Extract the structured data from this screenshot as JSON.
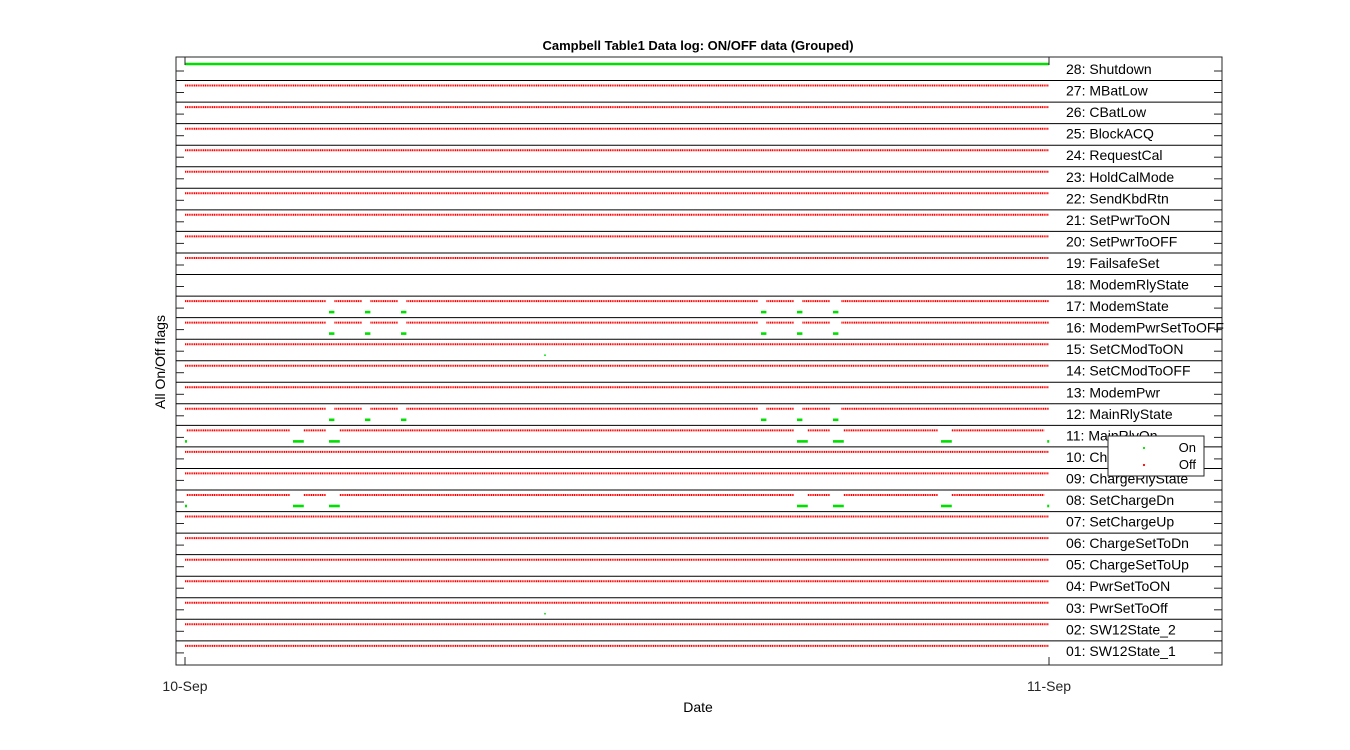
{
  "chart_data": {
    "type": "scatter",
    "title": "Campbell Table1 Data log: ON/OFF data (Grouped)",
    "xlabel": "Date",
    "ylabel": "All On/Off flags",
    "x_ticks": [
      "10-Sep",
      "11-Sep"
    ],
    "xlim": [
      "10-Sep 00:00",
      "11-Sep 04:00"
    ],
    "grid": false,
    "legend": {
      "position": "inside-right",
      "entries": [
        {
          "name": "On",
          "color": "#00e000"
        },
        {
          "name": "Off",
          "color": "#ff0000"
        }
      ]
    },
    "flags": [
      {
        "id": 28,
        "label": "28: Shutdown",
        "state": "on"
      },
      {
        "id": 27,
        "label": "27: MBatLow",
        "state": "off"
      },
      {
        "id": 26,
        "label": "26: CBatLow",
        "state": "off"
      },
      {
        "id": 25,
        "label": "25: BlockACQ",
        "state": "off"
      },
      {
        "id": 24,
        "label": "24: RequestCal",
        "state": "off"
      },
      {
        "id": 23,
        "label": "23: HoldCalMode",
        "state": "off"
      },
      {
        "id": 22,
        "label": "22: SendKbdRtn",
        "state": "off"
      },
      {
        "id": 21,
        "label": "21: SetPwrToON",
        "state": "off"
      },
      {
        "id": 20,
        "label": "20: SetPwrToOFF",
        "state": "off"
      },
      {
        "id": 19,
        "label": "19: FailsafeSet",
        "state": "off"
      },
      {
        "id": 18,
        "label": "18: ModemRlyState",
        "state": "none"
      },
      {
        "id": 17,
        "label": "17: ModemState",
        "state": "off",
        "on_intervals": [
          [
            4.0,
            4.15
          ],
          [
            5.0,
            5.15
          ],
          [
            6.0,
            6.15
          ],
          [
            16.0,
            16.15
          ],
          [
            17.0,
            17.15
          ],
          [
            18.0,
            18.15
          ]
        ]
      },
      {
        "id": 16,
        "label": "16: ModemPwrSetToOFF",
        "state": "off",
        "on_intervals": [
          [
            4.0,
            4.15
          ],
          [
            5.0,
            5.15
          ],
          [
            6.0,
            6.15
          ],
          [
            16.0,
            16.15
          ],
          [
            17.0,
            17.15
          ],
          [
            18.0,
            18.15
          ]
        ]
      },
      {
        "id": 15,
        "label": "15: SetCModToON",
        "state": "off",
        "on_points": [
          10.0
        ]
      },
      {
        "id": 14,
        "label": "14: SetCModToOFF",
        "state": "off"
      },
      {
        "id": 13,
        "label": "13: ModemPwr",
        "state": "off"
      },
      {
        "id": 12,
        "label": "12: MainRlyState",
        "state": "off",
        "on_intervals": [
          [
            4.0,
            4.15
          ],
          [
            5.0,
            5.15
          ],
          [
            6.0,
            6.15
          ],
          [
            16.0,
            16.15
          ],
          [
            17.0,
            17.15
          ],
          [
            18.0,
            18.15
          ]
        ]
      },
      {
        "id": 11,
        "label": "11: MainRlyOn",
        "state": "off",
        "on_intervals": [
          [
            0.0,
            0.05
          ],
          [
            3.0,
            3.3
          ],
          [
            4.0,
            4.3
          ],
          [
            17.0,
            17.3
          ],
          [
            18.0,
            18.3
          ],
          [
            21.0,
            21.3
          ],
          [
            23.95,
            24.0
          ]
        ]
      },
      {
        "id": 10,
        "label": "10: ChargeRlyOn",
        "state": "off"
      },
      {
        "id": 9,
        "label": "09: ChargeRlyState",
        "state": "off"
      },
      {
        "id": 8,
        "label": "08: SetChargeDn",
        "state": "off",
        "on_intervals": [
          [
            0.0,
            0.05
          ],
          [
            3.0,
            3.3
          ],
          [
            4.0,
            4.3
          ],
          [
            17.0,
            17.3
          ],
          [
            18.0,
            18.3
          ],
          [
            21.0,
            21.3
          ],
          [
            23.95,
            24.0
          ]
        ]
      },
      {
        "id": 7,
        "label": "07: SetChargeUp",
        "state": "off"
      },
      {
        "id": 6,
        "label": "06: ChargeSetToDn",
        "state": "off"
      },
      {
        "id": 5,
        "label": "05: ChargeSetToUp",
        "state": "off"
      },
      {
        "id": 4,
        "label": "04: PwrSetToON",
        "state": "off"
      },
      {
        "id": 3,
        "label": "03: PwrSetToOff",
        "state": "off",
        "on_points": [
          10.0
        ]
      },
      {
        "id": 2,
        "label": "02: SW12State_2",
        "state": "off"
      },
      {
        "id": 1,
        "label": "01: SW12State_1",
        "state": "off"
      }
    ]
  }
}
